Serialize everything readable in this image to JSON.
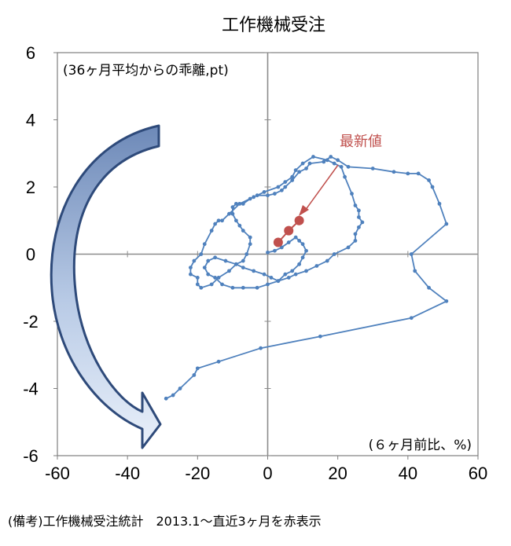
{
  "chart_data": {
    "type": "line",
    "title": "工作機械受注",
    "y_unit_note": "(36ヶ月平均からの乖離,pt)",
    "x_unit_note": "(６ヶ月前比、%)",
    "xlim": [
      -60,
      60
    ],
    "ylim": [
      -6,
      6
    ],
    "x_ticks": [
      "-60",
      "-40",
      "-20",
      "0",
      "20",
      "40",
      "60"
    ],
    "y_ticks": [
      "6",
      "4",
      "2",
      "0",
      "-2",
      "-4",
      "-6"
    ],
    "annotation": "最新値",
    "series": [
      {
        "color": "#4f81bd",
        "points": [
          [
            -29,
            -4.3
          ],
          [
            -27,
            -4.2
          ],
          [
            -25,
            -4.0
          ],
          [
            -21,
            -3.6
          ],
          [
            -20,
            -3.4
          ],
          [
            -14,
            -3.2
          ],
          [
            -2,
            -2.8
          ],
          [
            15,
            -2.45
          ],
          [
            41,
            -1.9
          ],
          [
            51,
            -1.4
          ],
          [
            46,
            -1.0
          ],
          [
            42,
            -0.5
          ],
          [
            41,
            0.0
          ],
          [
            51,
            0.9
          ],
          [
            49,
            1.5
          ],
          [
            47,
            2.0
          ],
          [
            46,
            2.2
          ],
          [
            43,
            2.4
          ],
          [
            40,
            2.4
          ],
          [
            36,
            2.45
          ],
          [
            30,
            2.55
          ],
          [
            23,
            2.6
          ],
          [
            20,
            2.8
          ],
          [
            18,
            2.9
          ],
          [
            16,
            2.75
          ],
          [
            12,
            2.7
          ],
          [
            11,
            2.55
          ],
          [
            9,
            2.45
          ],
          [
            7,
            2.2
          ],
          [
            5,
            2.0
          ],
          [
            4,
            1.9
          ],
          [
            2,
            1.8
          ],
          [
            0,
            1.75
          ],
          [
            -3,
            1.75
          ],
          [
            -5,
            1.65
          ],
          [
            -7,
            1.5
          ],
          [
            -9,
            1.5
          ],
          [
            -10,
            1.4
          ],
          [
            -10,
            1.2
          ],
          [
            -9,
            1.0
          ],
          [
            -8,
            0.85
          ],
          [
            -7,
            0.7
          ],
          [
            -5,
            0.5
          ],
          [
            -5,
            0.3
          ],
          [
            -6,
            0.0
          ],
          [
            -7,
            -0.2
          ],
          [
            -9,
            -0.3
          ],
          [
            -11,
            -0.5
          ],
          [
            -14,
            -0.7
          ],
          [
            -16,
            -0.9
          ],
          [
            -19,
            -1.0
          ],
          [
            -20,
            -0.9
          ],
          [
            -20,
            -0.7
          ],
          [
            -22,
            -0.6
          ],
          [
            -22,
            -0.4
          ],
          [
            -21,
            -0.2
          ],
          [
            -19,
            0.0
          ],
          [
            -18,
            0.3
          ],
          [
            -16,
            0.7
          ],
          [
            -15,
            0.9
          ],
          [
            -14,
            1.0
          ],
          [
            -13,
            1.0
          ],
          [
            -11,
            1.2
          ],
          [
            -8,
            1.5
          ],
          [
            -4,
            1.7
          ],
          [
            -1,
            1.85
          ],
          [
            3,
            2.0
          ],
          [
            5,
            2.15
          ],
          [
            7,
            2.3
          ],
          [
            8,
            2.5
          ],
          [
            10,
            2.7
          ],
          [
            13,
            2.9
          ],
          [
            17,
            2.8
          ],
          [
            19,
            2.7
          ],
          [
            21,
            2.6
          ],
          [
            22,
            2.3
          ],
          [
            24,
            1.8
          ],
          [
            25,
            1.45
          ],
          [
            26,
            1.3
          ],
          [
            26,
            1.1
          ],
          [
            27,
            0.95
          ],
          [
            26,
            0.8
          ],
          [
            25,
            0.6
          ],
          [
            25,
            0.4
          ],
          [
            23,
            0.2
          ],
          [
            19,
            0.0
          ],
          [
            17,
            -0.2
          ],
          [
            14,
            -0.35
          ],
          [
            11,
            -0.5
          ],
          [
            8,
            -0.6
          ],
          [
            6,
            -0.7
          ],
          [
            3,
            -0.8
          ],
          [
            0,
            -0.9
          ],
          [
            -3,
            -1.0
          ],
          [
            -7,
            -1.0
          ],
          [
            -10,
            -1.0
          ],
          [
            -13,
            -0.9
          ],
          [
            -15,
            -0.7
          ],
          [
            -17,
            -0.6
          ],
          [
            -18,
            -0.4
          ],
          [
            -17,
            -0.2
          ],
          [
            -15,
            -0.1
          ],
          [
            -12,
            -0.2
          ],
          [
            -9,
            -0.3
          ],
          [
            -7,
            -0.4
          ],
          [
            -4,
            -0.5
          ],
          [
            -1,
            -0.6
          ],
          [
            1,
            -0.7
          ],
          [
            3,
            -0.8
          ],
          [
            5,
            -0.6
          ],
          [
            7,
            -0.5
          ],
          [
            9,
            -0.3
          ],
          [
            10,
            -0.1
          ],
          [
            11,
            0.1
          ],
          [
            10,
            0.3
          ],
          [
            9,
            0.4
          ],
          [
            8,
            0.5
          ],
          [
            6,
            0.35
          ],
          [
            4,
            0.2
          ],
          [
            2,
            0.1
          ],
          [
            0,
            0.05
          ]
        ]
      }
    ],
    "latest_points": {
      "color": "#c0504d",
      "points": [
        [
          3,
          0.35
        ],
        [
          6,
          0.7
        ],
        [
          9,
          1.0
        ]
      ]
    }
  },
  "footer_text": "(備考)工作機械受注統計　2013.1～直近3ヶ月を赤表示"
}
